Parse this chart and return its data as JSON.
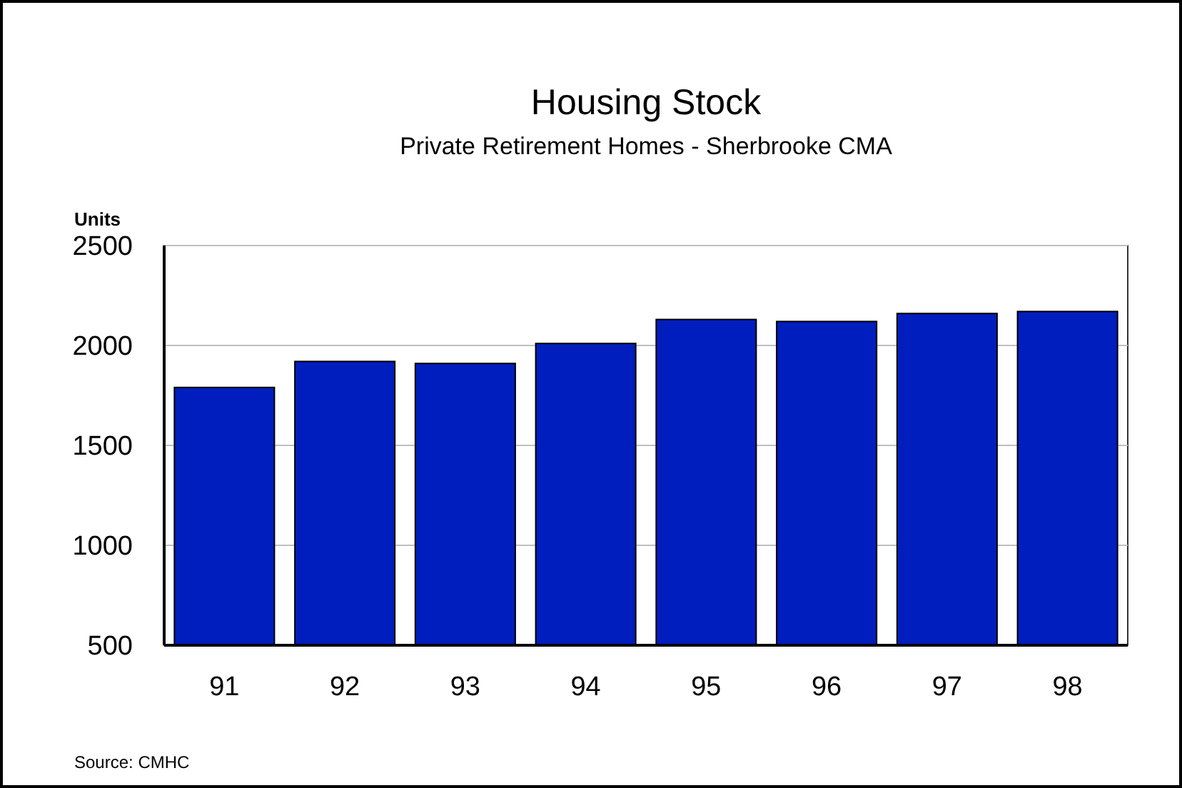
{
  "chart_data": {
    "type": "bar",
    "title": "Housing Stock",
    "subtitle": "Private Retirement Homes - Sherbrooke CMA",
    "ylabel": "Units",
    "categories": [
      "91",
      "92",
      "93",
      "94",
      "95",
      "96",
      "97",
      "98"
    ],
    "values": [
      1790,
      1920,
      1910,
      2010,
      2130,
      2120,
      2160,
      2170
    ],
    "color": "#001ebe",
    "ylim": [
      500,
      2500
    ],
    "yticks": [
      500,
      1000,
      1500,
      2000,
      2500
    ],
    "grid": "y",
    "annotations": [
      "Source: CMHC"
    ]
  }
}
